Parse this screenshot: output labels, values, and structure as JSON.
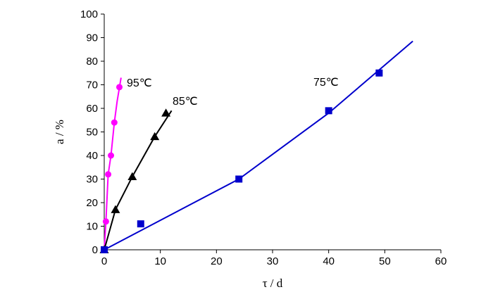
{
  "chart_data": {
    "type": "scatter",
    "xlabel": "τ / d",
    "ylabel": "a / %",
    "xlim": [
      0,
      60
    ],
    "ylim": [
      0,
      100
    ],
    "xticks": [
      0,
      10,
      20,
      30,
      40,
      50,
      60
    ],
    "yticks": [
      0,
      10,
      20,
      30,
      40,
      50,
      60,
      70,
      80,
      90,
      100
    ],
    "grid": false,
    "series": [
      {
        "name": "95℃",
        "marker": "circle",
        "color": "#ff00ff",
        "points": [
          [
            0,
            0
          ],
          [
            0.3,
            12
          ],
          [
            0.7,
            32
          ],
          [
            1.2,
            40
          ],
          [
            1.8,
            54
          ],
          [
            2.7,
            69
          ]
        ],
        "fit_line": [
          [
            0,
            0
          ],
          [
            0.3,
            12
          ],
          [
            0.7,
            32
          ],
          [
            1.2,
            40
          ],
          [
            1.8,
            54
          ],
          [
            2.3,
            63
          ],
          [
            3.0,
            73
          ]
        ]
      },
      {
        "name": "85℃",
        "marker": "triangle",
        "color": "#000000",
        "points": [
          [
            0,
            0
          ],
          [
            2,
            17
          ],
          [
            5,
            31
          ],
          [
            9,
            48
          ],
          [
            11,
            58
          ]
        ],
        "fit_line": [
          [
            0,
            0
          ],
          [
            2,
            17
          ],
          [
            5,
            31
          ],
          [
            9,
            48
          ],
          [
            12,
            59
          ]
        ]
      },
      {
        "name": "75℃",
        "marker": "square",
        "color": "#0000cc",
        "points": [
          [
            0,
            0
          ],
          [
            6.5,
            11
          ],
          [
            24,
            30
          ],
          [
            40,
            59
          ],
          [
            49,
            75
          ]
        ],
        "fit_line": [
          [
            0,
            0
          ],
          [
            24,
            30
          ],
          [
            40,
            58
          ],
          [
            55,
            88.5
          ]
        ]
      }
    ]
  }
}
